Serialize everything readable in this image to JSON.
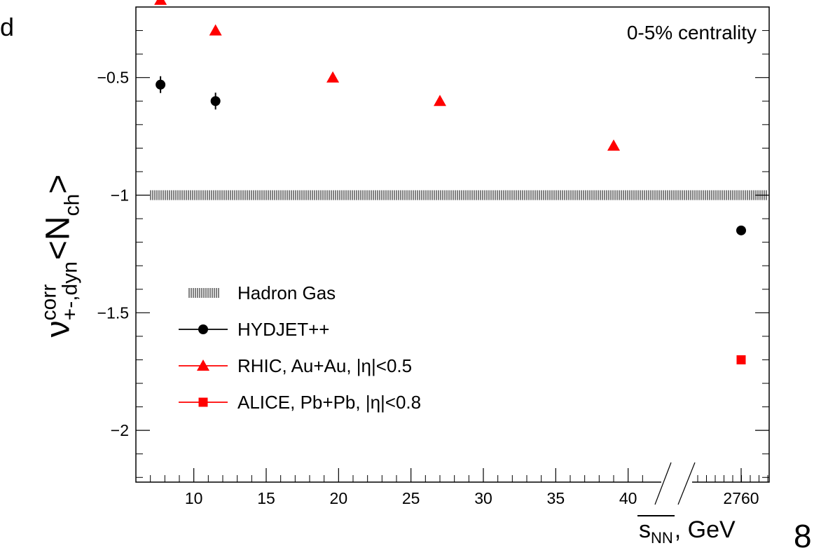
{
  "slide": {
    "corner_text": "d",
    "page_number": "8"
  },
  "chart_data": {
    "type": "scatter",
    "annotation": "0-5% centrality",
    "ylabel": {
      "main": "ν",
      "sup": "corr",
      "sub": "+-,dyn",
      "bracket_open": "<",
      "n": "N",
      "n_sub": "ch",
      "bracket_close": ">"
    },
    "xlabel": {
      "root": "s",
      "root_sub": "NN",
      "rest": ", GeV"
    },
    "ylim": [
      -2.22,
      -0.2
    ],
    "y_ticks": [
      "−0.5",
      "−1",
      "−1.5",
      "−2"
    ],
    "y_tick_values": [
      -0.5,
      -1,
      -1.5,
      -2
    ],
    "x_range_main": [
      6,
      42
    ],
    "x_ticks": [
      "10",
      "15",
      "20",
      "25",
      "30",
      "35",
      "40"
    ],
    "x_tick_values": [
      10,
      15,
      20,
      25,
      30,
      35,
      40
    ],
    "x_break": true,
    "x_extra_tick": {
      "label": "2760",
      "value": 2760
    },
    "grid": false,
    "legend_position": "bottom-left",
    "reference_line": {
      "name": "Hadron Gas",
      "y": -1.0
    },
    "series": [
      {
        "name": "HYDJET++",
        "marker": "circle",
        "color": "#000000",
        "x": [
          7.7,
          11.5,
          2760
        ],
        "y": [
          -0.53,
          -0.6,
          -1.15
        ]
      },
      {
        "name": "RHIC, Au+Au, |η|<0.5",
        "marker": "triangle",
        "color": "#ff0000",
        "x": [
          7.7,
          11.5,
          19.6,
          27,
          39
        ],
        "y": [
          -0.17,
          -0.3,
          -0.5,
          -0.6,
          -0.79
        ]
      },
      {
        "name": "ALICE, Pb+Pb, |η|<0.8",
        "marker": "square",
        "color": "#ff0000",
        "x": [
          2760
        ],
        "y": [
          -1.7
        ]
      }
    ]
  }
}
